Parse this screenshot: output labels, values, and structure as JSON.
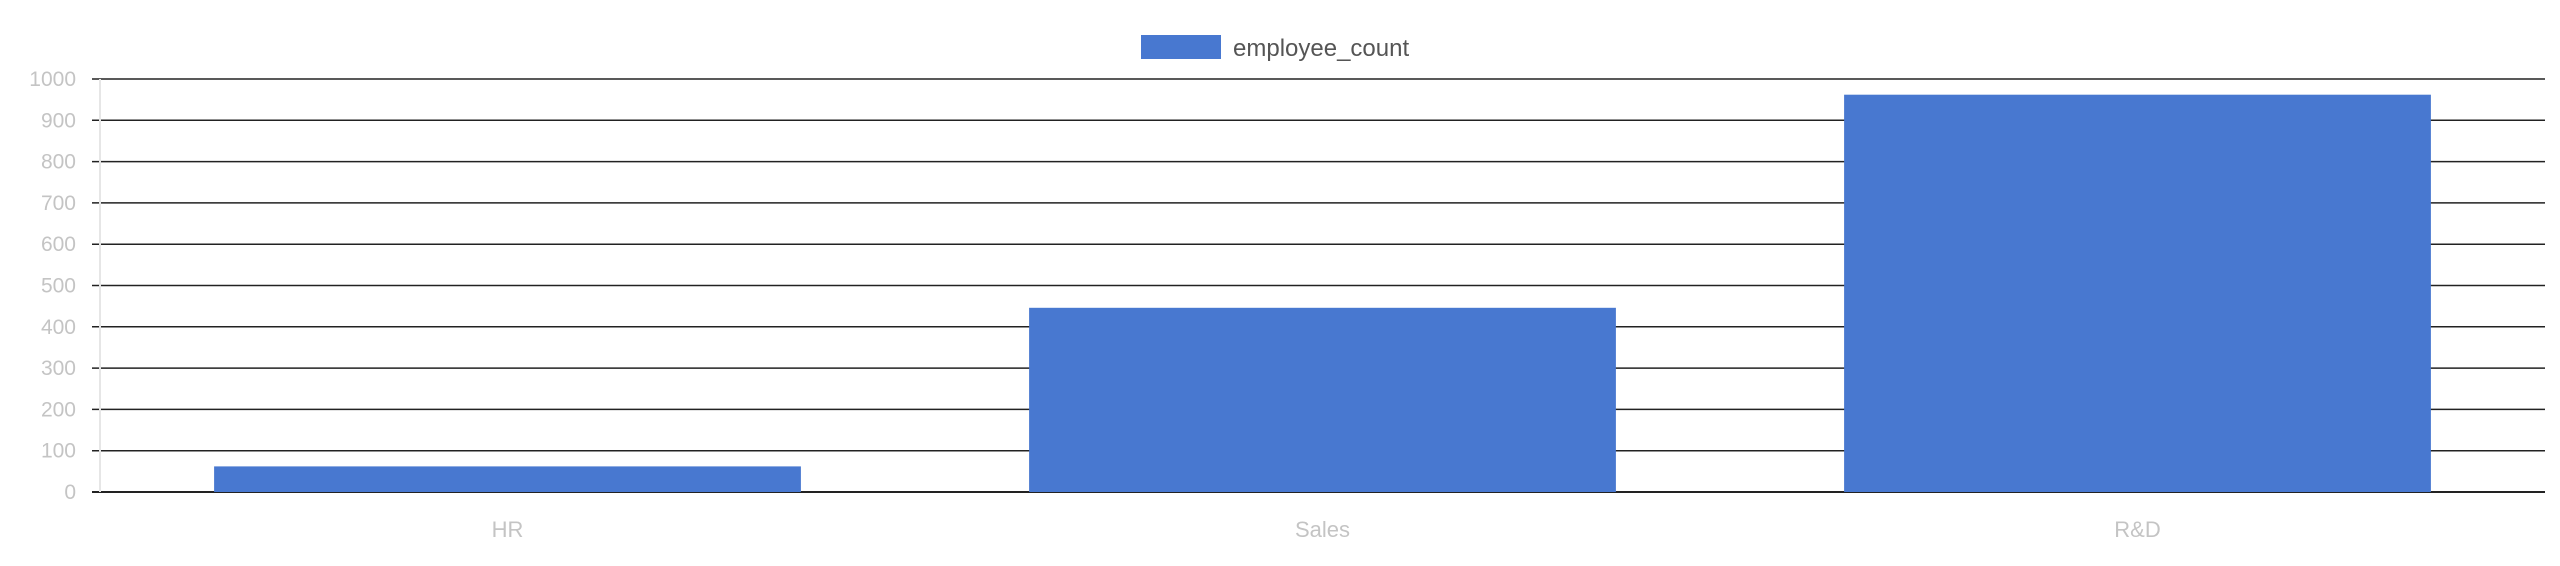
{
  "chart_data": {
    "type": "bar",
    "categories": [
      "HR",
      "Sales",
      "R&D"
    ],
    "series": [
      {
        "name": "employee_count",
        "values": [
          62,
          446,
          962
        ]
      }
    ],
    "ylim": [
      0,
      1000
    ],
    "yticks": [
      0,
      100,
      200,
      300,
      400,
      500,
      600,
      700,
      800,
      900,
      1000
    ],
    "grid": true,
    "legend_position": "top-center",
    "xlabel": "",
    "ylabel": "",
    "title": ""
  },
  "colors": {
    "bar": "#4878d0",
    "grid": "#222222",
    "tick_text": "#c4c4c4",
    "legend_text": "#555555"
  }
}
